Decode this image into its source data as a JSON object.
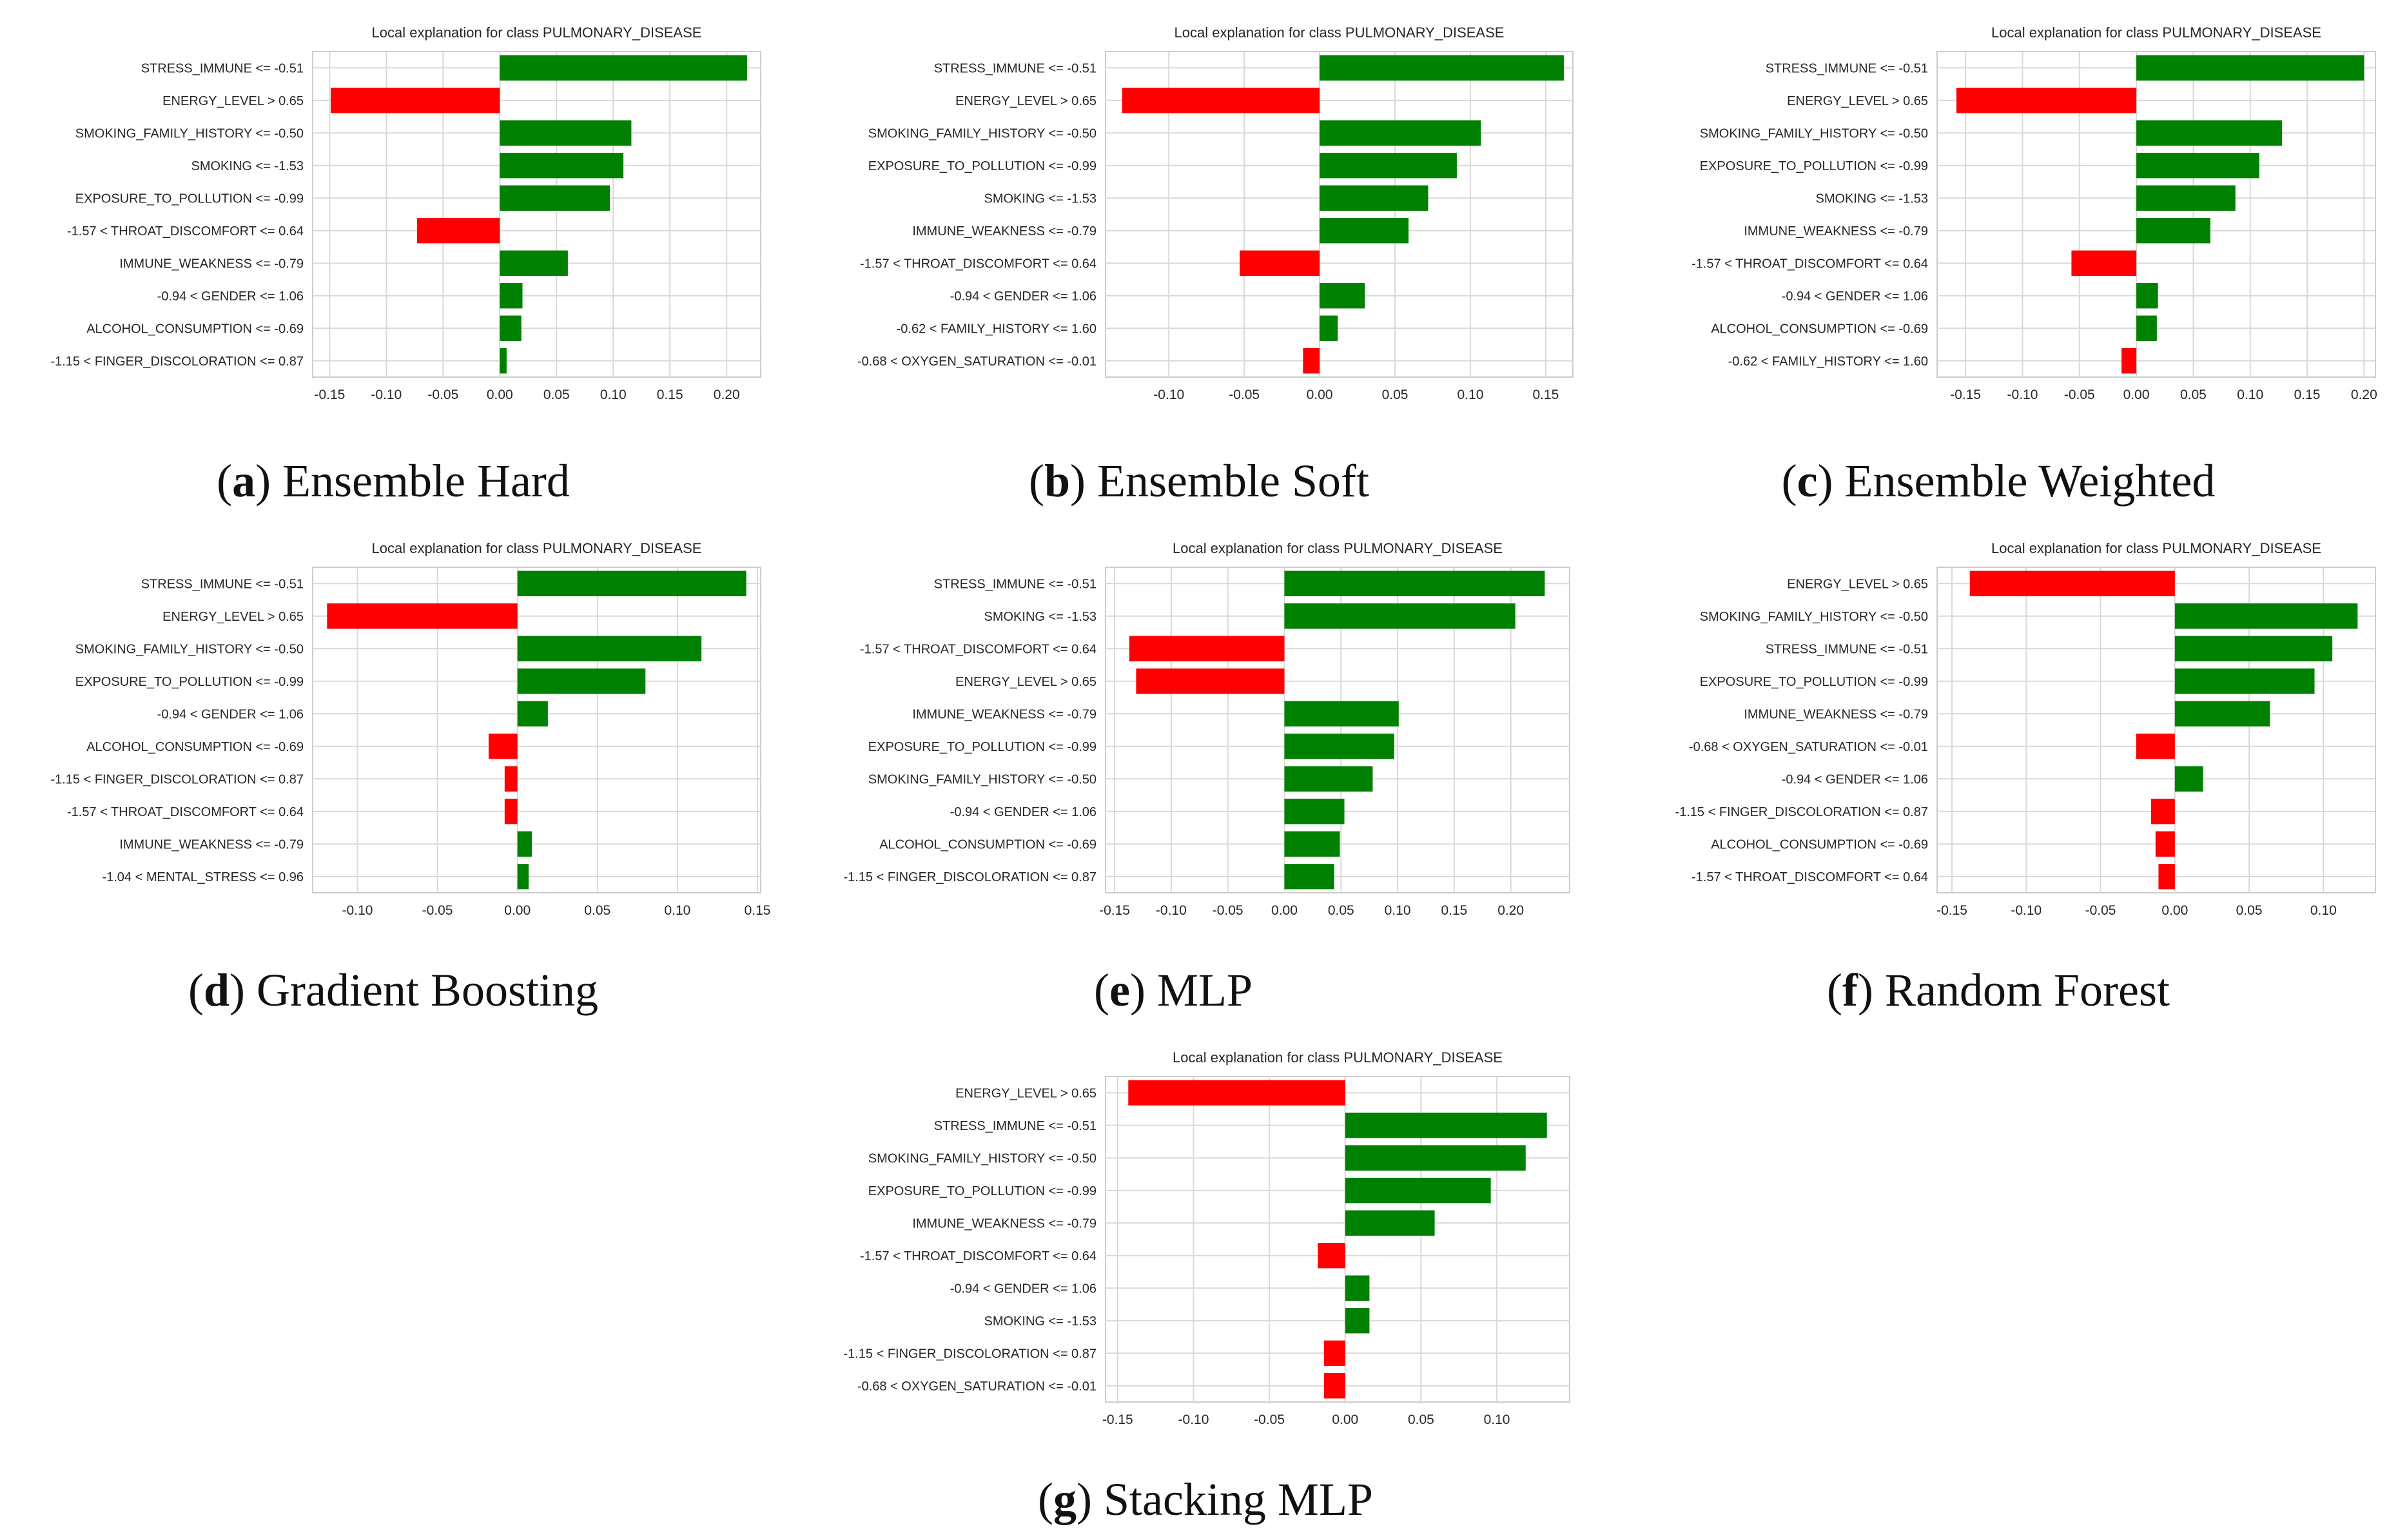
{
  "colors": {
    "positive": "#008000",
    "negative": "#ff0000",
    "grid": "#d9d9d9",
    "frame": "#cccccc",
    "text": "#262626"
  },
  "panels": [
    {
      "letter": "a",
      "caption": "Ensemble Hard",
      "chart_data": {
        "type": "bar",
        "orientation": "horizontal",
        "title": "Local explanation for class PULMONARY_DISEASE",
        "xlim": [
          -0.165,
          0.23
        ],
        "grid": true,
        "xticks": [
          "-0.15",
          "-0.10",
          "-0.05",
          "0.00",
          "0.05",
          "0.10",
          "0.15",
          "0.20"
        ],
        "xtick_values": [
          -0.15,
          -0.1,
          -0.05,
          0.0,
          0.05,
          0.1,
          0.15,
          0.2
        ],
        "categories": [
          "STRESS_IMMUNE <= -0.51",
          "ENERGY_LEVEL > 0.65",
          "SMOKING_FAMILY_HISTORY <= -0.50",
          "SMOKING <= -1.53",
          "EXPOSURE_TO_POLLUTION <= -0.99",
          "-1.57 < THROAT_DISCOMFORT <= 0.64",
          "IMMUNE_WEAKNESS <= -0.79",
          "-0.94 < GENDER <= 1.06",
          "ALCOHOL_CONSUMPTION <= -0.69",
          "-1.15 < FINGER_DISCOLORATION <= 0.87"
        ],
        "values": [
          0.218,
          -0.149,
          0.116,
          0.109,
          0.097,
          -0.073,
          0.06,
          0.02,
          0.019,
          0.006
        ]
      }
    },
    {
      "letter": "b",
      "caption": "Ensemble Soft",
      "chart_data": {
        "type": "bar",
        "orientation": "horizontal",
        "title": "Local explanation for class PULMONARY_DISEASE",
        "xlim": [
          -0.142,
          0.168
        ],
        "grid": true,
        "xticks": [
          "-0.10",
          "-0.05",
          "0.00",
          "0.05",
          "0.10",
          "0.15"
        ],
        "xtick_values": [
          -0.1,
          -0.05,
          0.0,
          0.05,
          0.1,
          0.15
        ],
        "categories": [
          "STRESS_IMMUNE <= -0.51",
          "ENERGY_LEVEL > 0.65",
          "SMOKING_FAMILY_HISTORY <= -0.50",
          "EXPOSURE_TO_POLLUTION <= -0.99",
          "SMOKING <= -1.53",
          "IMMUNE_WEAKNESS <= -0.79",
          "-1.57 < THROAT_DISCOMFORT <= 0.64",
          "-0.94 < GENDER <= 1.06",
          "-0.62 < FAMILY_HISTORY <= 1.60",
          "-0.68 < OXYGEN_SATURATION <= -0.01"
        ],
        "values": [
          0.162,
          -0.131,
          0.107,
          0.091,
          0.072,
          0.059,
          -0.053,
          0.03,
          0.012,
          -0.011
        ]
      }
    },
    {
      "letter": "c",
      "caption": "Ensemble Weighted",
      "chart_data": {
        "type": "bar",
        "orientation": "horizontal",
        "title": "Local explanation for class PULMONARY_DISEASE",
        "xlim": [
          -0.175,
          0.21
        ],
        "grid": true,
        "xticks": [
          "-0.15",
          "-0.10",
          "-0.05",
          "0.00",
          "0.05",
          "0.10",
          "0.15",
          "0.20"
        ],
        "xtick_values": [
          -0.15,
          -0.1,
          -0.05,
          0.0,
          0.05,
          0.1,
          0.15,
          0.2
        ],
        "categories": [
          "STRESS_IMMUNE <= -0.51",
          "ENERGY_LEVEL > 0.65",
          "SMOKING_FAMILY_HISTORY <= -0.50",
          "EXPOSURE_TO_POLLUTION <= -0.99",
          "SMOKING <= -1.53",
          "IMMUNE_WEAKNESS <= -0.79",
          "-1.57 < THROAT_DISCOMFORT <= 0.64",
          "-0.94 < GENDER <= 1.06",
          "ALCOHOL_CONSUMPTION <= -0.69",
          "-0.62 < FAMILY_HISTORY <= 1.60"
        ],
        "values": [
          0.2,
          -0.158,
          0.128,
          0.108,
          0.087,
          0.065,
          -0.057,
          0.019,
          0.018,
          -0.013
        ]
      }
    },
    {
      "letter": "d",
      "caption": "Gradient Boosting",
      "chart_data": {
        "type": "bar",
        "orientation": "horizontal",
        "title": "Local explanation for class PULMONARY_DISEASE",
        "xlim": [
          -0.128,
          0.152
        ],
        "grid": true,
        "xticks": [
          "-0.10",
          "-0.05",
          "0.00",
          "0.05",
          "0.10",
          "0.15"
        ],
        "xtick_values": [
          -0.1,
          -0.05,
          0.0,
          0.05,
          0.1,
          0.15
        ],
        "categories": [
          "STRESS_IMMUNE <= -0.51",
          "ENERGY_LEVEL > 0.65",
          "SMOKING_FAMILY_HISTORY <= -0.50",
          "EXPOSURE_TO_POLLUTION <= -0.99",
          "-0.94 < GENDER <= 1.06",
          "ALCOHOL_CONSUMPTION <= -0.69",
          "-1.15 < FINGER_DISCOLORATION <= 0.87",
          "-1.57 < THROAT_DISCOMFORT <= 0.64",
          "IMMUNE_WEAKNESS <= -0.79",
          "-1.04 < MENTAL_STRESS <= 0.96"
        ],
        "values": [
          0.143,
          -0.119,
          0.115,
          0.08,
          0.019,
          -0.018,
          -0.008,
          -0.008,
          0.009,
          0.007
        ]
      }
    },
    {
      "letter": "e",
      "caption": "MLP",
      "chart_data": {
        "type": "bar",
        "orientation": "horizontal",
        "title": "Local explanation for class PULMONARY_DISEASE",
        "xlim": [
          -0.158,
          0.252
        ],
        "grid": true,
        "xticks": [
          "-0.15",
          "-0.10",
          "-0.05",
          "0.00",
          "0.05",
          "0.10",
          "0.15",
          "0.20"
        ],
        "xtick_values": [
          -0.15,
          -0.1,
          -0.05,
          0.0,
          0.05,
          0.1,
          0.15,
          0.2
        ],
        "categories": [
          "STRESS_IMMUNE <= -0.51",
          "SMOKING <= -1.53",
          "-1.57 < THROAT_DISCOMFORT <= 0.64",
          "ENERGY_LEVEL > 0.65",
          "IMMUNE_WEAKNESS <= -0.79",
          "EXPOSURE_TO_POLLUTION <= -0.99",
          "SMOKING_FAMILY_HISTORY <= -0.50",
          "-0.94 < GENDER <= 1.06",
          "ALCOHOL_CONSUMPTION <= -0.69",
          "-1.15 < FINGER_DISCOLORATION <= 0.87"
        ],
        "values": [
          0.23,
          0.204,
          -0.137,
          -0.131,
          0.101,
          0.097,
          0.078,
          0.053,
          0.049,
          0.044
        ]
      }
    },
    {
      "letter": "f",
      "caption": "Random Forest",
      "chart_data": {
        "type": "bar",
        "orientation": "horizontal",
        "title": "Local explanation for class PULMONARY_DISEASE",
        "xlim": [
          -0.16,
          0.135
        ],
        "grid": true,
        "xticks": [
          "-0.15",
          "-0.10",
          "-0.05",
          "0.00",
          "0.05",
          "0.10"
        ],
        "xtick_values": [
          -0.15,
          -0.1,
          -0.05,
          0.0,
          0.05,
          0.1
        ],
        "categories": [
          "ENERGY_LEVEL > 0.65",
          "SMOKING_FAMILY_HISTORY <= -0.50",
          "STRESS_IMMUNE <= -0.51",
          "EXPOSURE_TO_POLLUTION <= -0.99",
          "IMMUNE_WEAKNESS <= -0.79",
          "-0.68 < OXYGEN_SATURATION <= -0.01",
          "-0.94 < GENDER <= 1.06",
          "-1.15 < FINGER_DISCOLORATION <= 0.87",
          "ALCOHOL_CONSUMPTION <= -0.69",
          "-1.57 < THROAT_DISCOMFORT <= 0.64"
        ],
        "values": [
          -0.138,
          0.123,
          0.106,
          0.094,
          0.064,
          -0.026,
          0.019,
          -0.016,
          -0.013,
          -0.011
        ]
      }
    },
    {
      "letter": "g",
      "caption": "Stacking MLP",
      "chart_data": {
        "type": "bar",
        "orientation": "horizontal",
        "title": "Local explanation for class PULMONARY_DISEASE",
        "xlim": [
          -0.158,
          0.148
        ],
        "grid": true,
        "xticks": [
          "-0.15",
          "-0.10",
          "-0.05",
          "0.00",
          "0.05",
          "0.10"
        ],
        "xtick_values": [
          -0.15,
          -0.1,
          -0.05,
          0.0,
          0.05,
          0.1
        ],
        "categories": [
          "ENERGY_LEVEL > 0.65",
          "STRESS_IMMUNE <= -0.51",
          "SMOKING_FAMILY_HISTORY <= -0.50",
          "EXPOSURE_TO_POLLUTION <= -0.99",
          "IMMUNE_WEAKNESS <= -0.79",
          "-1.57 < THROAT_DISCOMFORT <= 0.64",
          "-0.94 < GENDER <= 1.06",
          "SMOKING <= -1.53",
          "-1.15 < FINGER_DISCOLORATION <= 0.87",
          "-0.68 < OXYGEN_SATURATION <= -0.01"
        ],
        "values": [
          -0.143,
          0.133,
          0.119,
          0.096,
          0.059,
          -0.018,
          0.016,
          0.016,
          -0.014,
          -0.014
        ]
      }
    }
  ]
}
